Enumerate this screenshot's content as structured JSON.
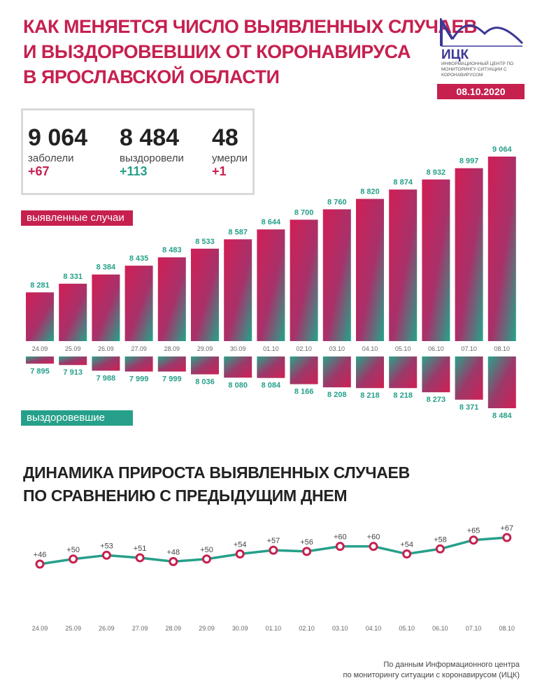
{
  "header": {
    "title_lines": [
      "Как меняется число выявленных случаев",
      "и выздоровевших от коронавируса",
      "в Ярославской области"
    ],
    "logo_text": "ИЦК",
    "logo_sub": "Информационный центр по мониторингу ситуации с коронавирусом",
    "date": "08.10.2020"
  },
  "summary": {
    "cases": {
      "value": "9 064",
      "label": "заболели",
      "delta": "+67"
    },
    "recovered": {
      "value": "8 484",
      "label": "выздоровели",
      "delta": "+113"
    },
    "deaths": {
      "value": "48",
      "label": "умерли",
      "delta": "+1"
    }
  },
  "pills": {
    "cases": "выявленные случаи",
    "recovered": "выздоровевшие"
  },
  "subtitle_lines": [
    "Динамика прироста выявленных случаев",
    "по сравнению с предыдущим днем"
  ],
  "footer_lines": [
    "По данным Информационного центра",
    "по мониторингу ситуации с коронавирусом (ИЦК)"
  ],
  "colors": {
    "accent": "#c6204f",
    "teal": "#26a08a",
    "navy": "#3b3896"
  },
  "chart_data": [
    {
      "type": "bar",
      "name": "выявленные случаи",
      "categories": [
        "24.09",
        "25.09",
        "26.09",
        "27.09",
        "28.09",
        "29.09",
        "30.09",
        "01.10",
        "02.10",
        "03.10",
        "04.10",
        "05.10",
        "06.10",
        "07.10",
        "08.10"
      ],
      "values": [
        8281,
        8331,
        8384,
        8435,
        8483,
        8533,
        8587,
        8644,
        8700,
        8760,
        8820,
        8874,
        8932,
        8997,
        9064
      ],
      "labels": [
        "8 281",
        "8 331",
        "8 384",
        "8 435",
        "8 483",
        "8 533",
        "8 587",
        "8 644",
        "8 700",
        "8 760",
        "8 820",
        "8 874",
        "8 932",
        "8 997",
        "9 064"
      ]
    },
    {
      "type": "bar",
      "name": "выздоровевшие",
      "categories": [
        "24.09",
        "25.09",
        "26.09",
        "27.09",
        "28.09",
        "29.09",
        "30.09",
        "01.10",
        "02.10",
        "03.10",
        "04.10",
        "05.10",
        "06.10",
        "07.10",
        "08.10"
      ],
      "values": [
        7895,
        7913,
        7988,
        7999,
        7999,
        8036,
        8080,
        8084,
        8166,
        8208,
        8218,
        8218,
        8273,
        8371,
        8484
      ],
      "labels": [
        "7 895",
        "7 913",
        "7 988",
        "7 999",
        "7 999",
        "8 036",
        "8 080",
        "8 084",
        "8 166",
        "8 208",
        "8 218",
        "8 218",
        "8 273",
        "8 371",
        "8 484"
      ]
    },
    {
      "type": "line",
      "title": "Динамика прироста выявленных случаев по сравнению с предыдущим днем",
      "categories": [
        "24.09",
        "25.09",
        "26.09",
        "27.09",
        "28.09",
        "29.09",
        "30.09",
        "01.10",
        "02.10",
        "03.10",
        "04.10",
        "05.10",
        "06.10",
        "07.10",
        "08.10"
      ],
      "values": [
        46,
        50,
        53,
        51,
        48,
        50,
        54,
        57,
        56,
        60,
        60,
        54,
        58,
        65,
        67
      ],
      "labels": [
        "+46",
        "+50",
        "+53",
        "+51",
        "+48",
        "+50",
        "+54",
        "+57",
        "+56",
        "+60",
        "+60",
        "+54",
        "+58",
        "+65",
        "+67"
      ]
    }
  ]
}
